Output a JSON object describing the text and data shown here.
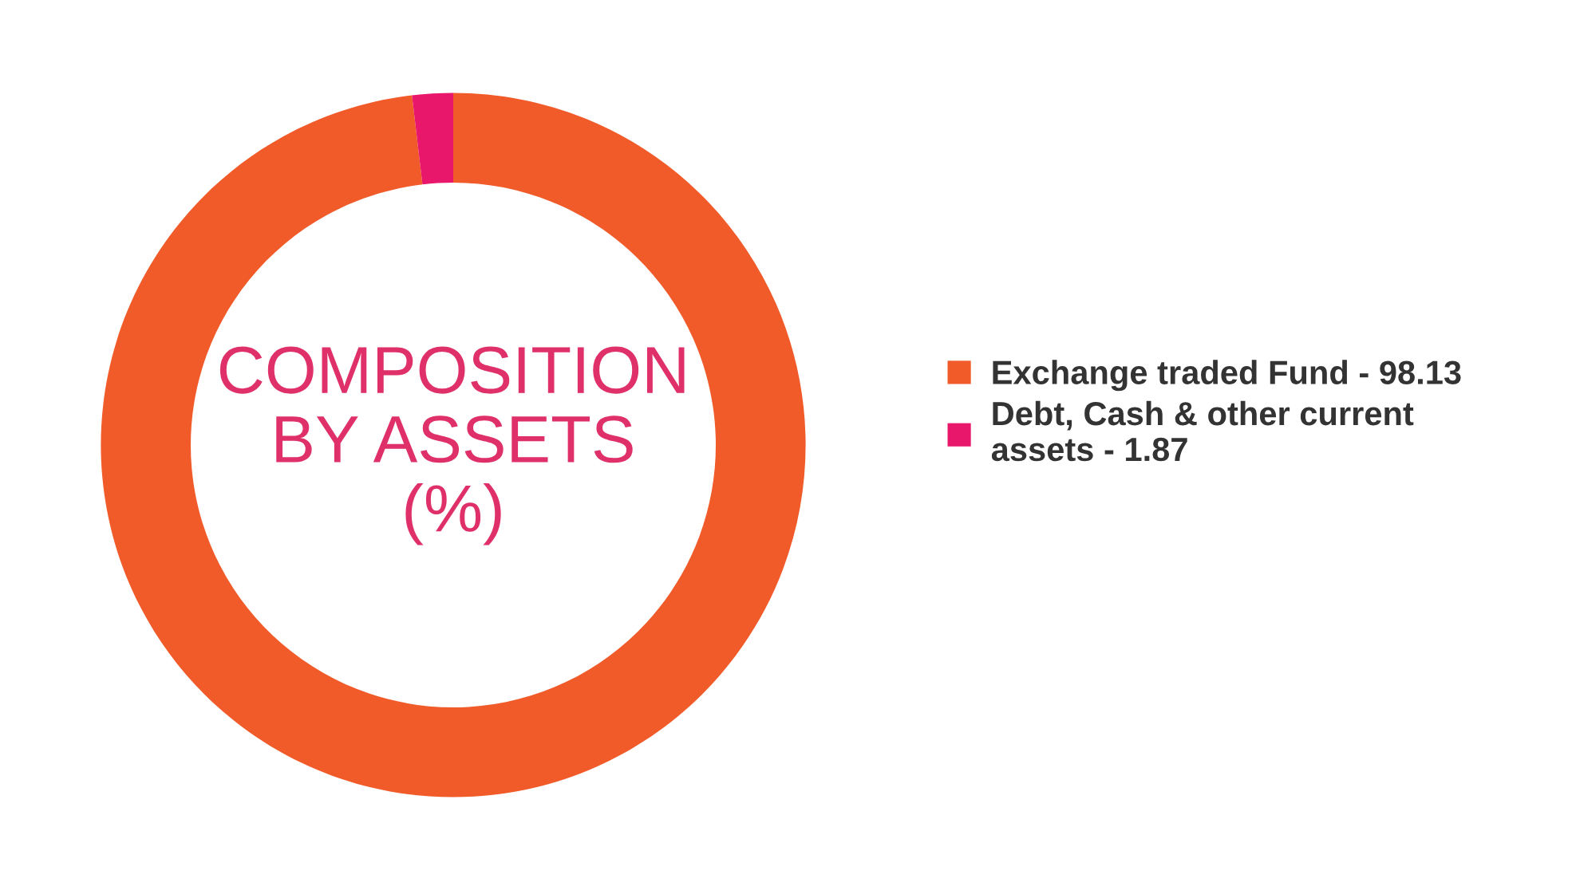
{
  "chart_data": {
    "type": "donut",
    "title": "COMPOSITION\nBY ASSETS\n(%)",
    "categories": [
      "Exchange traded Fund - 98.13",
      "Debt, Cash & other current\nassets - 1.87"
    ],
    "values": [
      98.13,
      1.87
    ],
    "colors": [
      "#f15a29",
      "#e8176b"
    ],
    "legend": "right"
  }
}
